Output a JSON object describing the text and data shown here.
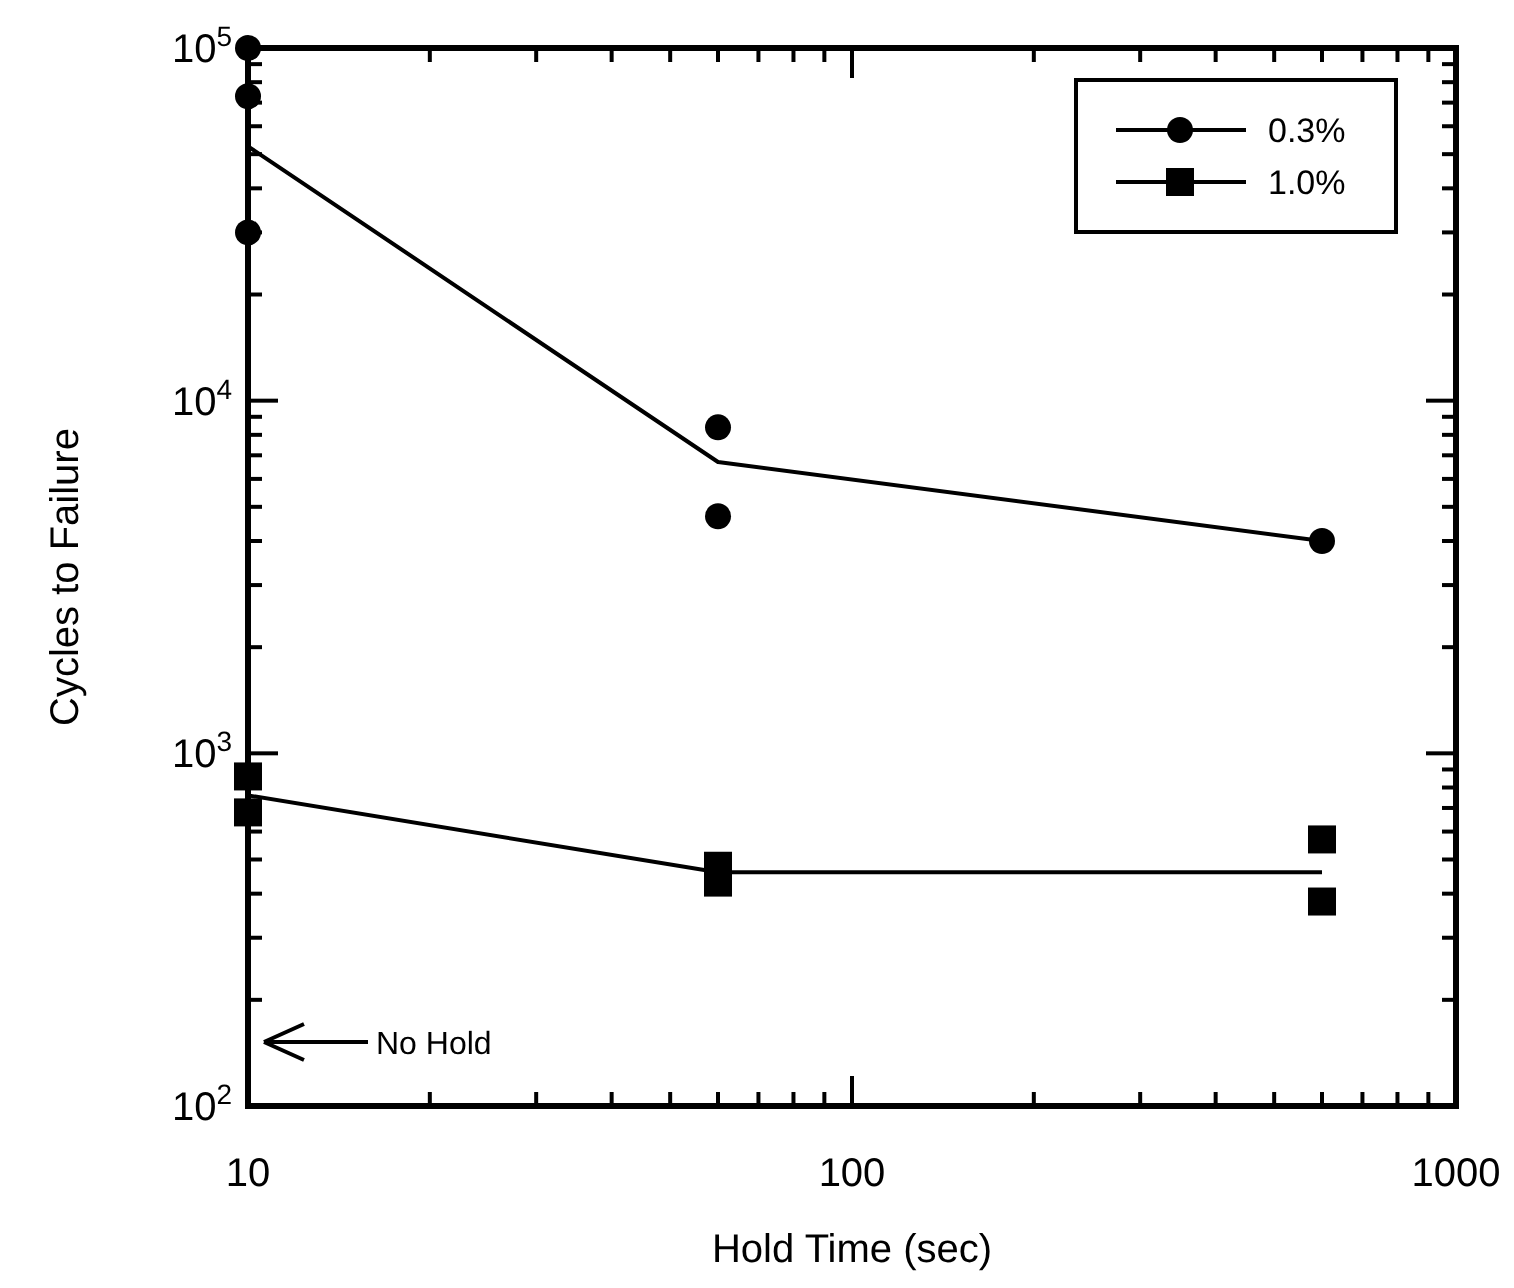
{
  "chart_data": {
    "type": "scatter",
    "xlabel": "Hold Time (sec)",
    "ylabel": "Cycles to Failure",
    "log": "xy",
    "grid": false,
    "legend": "top right",
    "xlim": [
      10,
      1000
    ],
    "ylim": [
      100,
      100000
    ],
    "xticks": [
      10,
      {
        "value": 20,
        "label": null
      },
      {
        "value": 30,
        "label": null
      },
      {
        "value": 40,
        "label": null
      },
      {
        "value": 50,
        "label": null
      },
      {
        "value": 60,
        "label": null
      },
      {
        "value": 70,
        "label": null
      },
      {
        "value": 80,
        "label": null
      },
      {
        "value": 90,
        "label": null
      },
      100,
      {
        "value": 200,
        "label": null
      },
      {
        "value": 300,
        "label": null
      },
      {
        "value": 400,
        "label": null
      },
      {
        "value": 500,
        "label": null
      },
      {
        "value": 600,
        "label": null
      },
      {
        "value": 700,
        "label": null
      },
      {
        "value": 800,
        "label": null
      },
      {
        "value": 900,
        "label": null
      },
      1000
    ],
    "yticks": [
      {
        "value": 100,
        "label": "10$^{2}$"
      },
      {
        "value": 200,
        "label": null
      },
      {
        "value": 300,
        "label": null
      },
      {
        "value": 400,
        "label": null
      },
      {
        "value": 500,
        "label": null
      },
      {
        "value": 600,
        "label": null
      },
      {
        "value": 700,
        "label": null
      },
      {
        "value": 800,
        "label": null
      },
      {
        "value": 900,
        "label": null
      },
      {
        "value": 1000,
        "label": "10$^{3}$"
      },
      {
        "value": 2000,
        "label": null
      },
      {
        "value": 3000,
        "label": null
      },
      {
        "value": 4000,
        "label": null
      },
      {
        "value": 5000,
        "label": null
      },
      {
        "value": 6000,
        "label": null
      },
      {
        "value": 7000,
        "label": null
      },
      {
        "value": 8000,
        "label": null
      },
      {
        "value": 9000,
        "label": null
      },
      {
        "value": 10000,
        "label": "10$^{4}$"
      },
      {
        "value": 20000,
        "label": null
      },
      {
        "value": 30000,
        "label": null
      },
      {
        "value": 40000,
        "label": null
      },
      {
        "value": 50000,
        "label": null
      },
      {
        "value": 60000,
        "label": null
      },
      {
        "value": 70000,
        "label": null
      },
      {
        "value": 80000,
        "label": null
      },
      {
        "value": 90000,
        "label": null
      },
      {
        "value": 100000,
        "label": "10$^{5}$"
      }
    ],
    "series": [
      {
        "name": "0.3%",
        "marker": "circle",
        "color": "#000000",
        "x": [
          10,
          10,
          10,
          60,
          60,
          600
        ],
        "values": [
          100000,
          73000,
          30000,
          8400,
          4700,
          4000
        ]
      },
      {
        "name": "1.0%",
        "marker": "square",
        "color": "#000000",
        "x": [
          10,
          10,
          60,
          60,
          600,
          600
        ],
        "values": [
          860,
          680,
          480,
          430,
          570,
          380
        ]
      },
      {
        "type": "line",
        "marker": "none",
        "color": "#000000",
        "x": [
          10,
          60,
          600
        ],
        "values": [
          52600,
          6700,
          4000
        ]
      },
      {
        "type": "line",
        "marker": "none",
        "color": "#000000",
        "x": [
          10,
          60,
          600
        ],
        "values": [
          760,
          460,
          460
        ]
      }
    ],
    "annotations": [
      "No Hold"
    ]
  }
}
